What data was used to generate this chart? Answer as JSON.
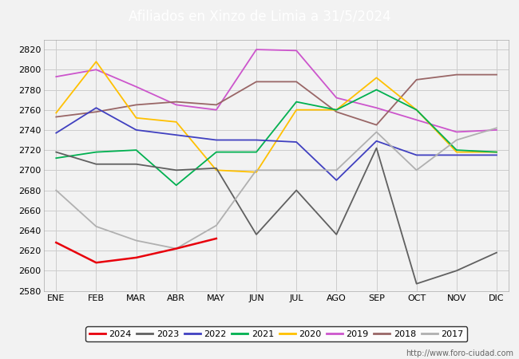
{
  "title": "Afiliados en Xinzo de Limia a 31/5/2024",
  "title_bg_color": "#4472c4",
  "title_text_color": "white",
  "ylim": [
    2580,
    2830
  ],
  "yticks": [
    2580,
    2600,
    2620,
    2640,
    2660,
    2680,
    2700,
    2720,
    2740,
    2760,
    2780,
    2800,
    2820
  ],
  "months": [
    "ENE",
    "FEB",
    "MAR",
    "ABR",
    "MAY",
    "JUN",
    "JUL",
    "AGO",
    "SEP",
    "OCT",
    "NOV",
    "DIC"
  ],
  "series": {
    "2024": {
      "color": "#e8000b",
      "data": [
        2628,
        2608,
        2613,
        2622,
        2632,
        null,
        null,
        null,
        null,
        null,
        null,
        null
      ]
    },
    "2023": {
      "color": "#606060",
      "data": [
        2718,
        2706,
        2706,
        2700,
        2702,
        2636,
        2680,
        2636,
        2722,
        2587,
        2600,
        2618
      ]
    },
    "2022": {
      "color": "#4040c0",
      "data": [
        2737,
        2762,
        2740,
        2735,
        2730,
        2730,
        2728,
        2690,
        2729,
        2715,
        2715,
        2715
      ]
    },
    "2021": {
      "color": "#00b050",
      "data": [
        2712,
        2718,
        2720,
        2685,
        2718,
        2718,
        2768,
        2760,
        2780,
        2760,
        2720,
        2718
      ]
    },
    "2020": {
      "color": "#ffc000",
      "data": [
        2757,
        2808,
        2752,
        2748,
        2700,
        2698,
        2760,
        2760,
        2792,
        2760,
        2718,
        2718
      ]
    },
    "2019": {
      "color": "#cc55cc",
      "data": [
        2793,
        2800,
        2783,
        2765,
        2760,
        2820,
        2819,
        2772,
        2762,
        2750,
        2738,
        2740
      ]
    },
    "2018": {
      "color": "#996666",
      "data": [
        2753,
        2758,
        2765,
        2768,
        2765,
        2788,
        2788,
        2758,
        2745,
        2790,
        2795,
        2795
      ]
    },
    "2017": {
      "color": "#b0b0b0",
      "data": [
        2680,
        2644,
        2630,
        2622,
        2645,
        2700,
        2700,
        2700,
        2738,
        2700,
        2730,
        2742
      ]
    }
  },
  "footer_text": "http://www.foro-ciudad.com",
  "bg_color": "#f2f2f2",
  "plot_bg_color": "#f2f2f2",
  "grid_color": "#cccccc"
}
